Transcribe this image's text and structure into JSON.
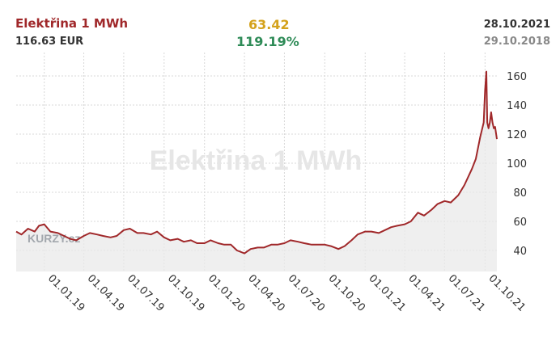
{
  "header": {
    "title": "Elektřina 1 MWh",
    "price": "116.63 EUR",
    "change_abs": "63.42",
    "change_pct": "119.19%",
    "date_end": "28.10.2021",
    "date_start": "29.10.2018"
  },
  "watermark": "Elektřina 1 MWh",
  "logo": "KURZY.cz",
  "colors": {
    "line": "#a0282a",
    "area": "#e9e9e9",
    "grid": "#d8d8d8",
    "title": "#a0282a",
    "change_abs": "#d4a21c",
    "change_pct": "#2e8b57"
  },
  "chart_data": {
    "type": "area",
    "title": "Elektřina 1 MWh",
    "xlabel": "",
    "ylabel": "",
    "ylim": [
      20,
      170
    ],
    "y_ticks": [
      40,
      60,
      80,
      100,
      120,
      140,
      160
    ],
    "x_ticks": [
      "01.01.19",
      "01.04.19",
      "01.07.19",
      "01.10.19",
      "01.01.20",
      "01.04.20",
      "01.07.20",
      "01.10.20",
      "01.01.21",
      "01.04.21",
      "01.07.21",
      "01.10.21"
    ],
    "y_axis_position": "right",
    "grid": true,
    "series": [
      {
        "x": [
          "2018-10-29",
          "2018-11-10",
          "2018-11-25",
          "2018-12-10",
          "2018-12-20",
          "2019-01-01",
          "2019-01-15",
          "2019-02-01",
          "2019-02-15",
          "2019-03-01",
          "2019-03-15",
          "2019-04-01",
          "2019-04-15",
          "2019-05-01",
          "2019-05-15",
          "2019-06-01",
          "2019-06-15",
          "2019-07-01",
          "2019-07-15",
          "2019-08-01",
          "2019-08-15",
          "2019-09-01",
          "2019-09-15",
          "2019-10-01",
          "2019-10-15",
          "2019-11-01",
          "2019-11-15",
          "2019-12-01",
          "2019-12-15",
          "2020-01-01",
          "2020-01-15",
          "2020-02-01",
          "2020-02-15",
          "2020-03-01",
          "2020-03-15",
          "2020-04-01",
          "2020-04-15",
          "2020-05-01",
          "2020-05-15",
          "2020-06-01",
          "2020-06-15",
          "2020-07-01",
          "2020-07-15",
          "2020-08-01",
          "2020-08-15",
          "2020-09-01",
          "2020-09-15",
          "2020-10-01",
          "2020-10-15",
          "2020-11-01",
          "2020-11-15",
          "2020-12-01",
          "2020-12-15",
          "2021-01-01",
          "2021-01-15",
          "2021-02-01",
          "2021-02-15",
          "2021-03-01",
          "2021-03-15",
          "2021-04-01",
          "2021-04-15",
          "2021-05-01",
          "2021-05-15",
          "2021-06-01",
          "2021-06-15",
          "2021-07-01",
          "2021-07-15",
          "2021-08-01",
          "2021-08-15",
          "2021-09-01",
          "2021-09-10",
          "2021-09-20",
          "2021-09-28",
          "2021-10-01",
          "2021-10-04",
          "2021-10-06",
          "2021-10-09",
          "2021-10-12",
          "2021-10-15",
          "2021-10-18",
          "2021-10-21",
          "2021-10-24",
          "2021-10-28"
        ],
        "values": [
          53,
          51,
          55,
          53,
          57,
          58,
          53,
          52,
          50,
          48,
          47,
          50,
          52,
          51,
          50,
          49,
          50,
          54,
          55,
          52,
          52,
          51,
          53,
          49,
          47,
          48,
          46,
          47,
          45,
          45,
          47,
          45,
          44,
          44,
          40,
          38,
          41,
          42,
          42,
          44,
          44,
          45,
          47,
          46,
          45,
          44,
          44,
          44,
          43,
          41,
          43,
          47,
          51,
          53,
          53,
          52,
          54,
          56,
          57,
          58,
          60,
          66,
          64,
          68,
          72,
          74,
          73,
          78,
          85,
          96,
          103,
          118,
          128,
          150,
          163,
          128,
          124,
          128,
          135,
          128,
          124,
          125,
          116.63
        ]
      }
    ]
  }
}
